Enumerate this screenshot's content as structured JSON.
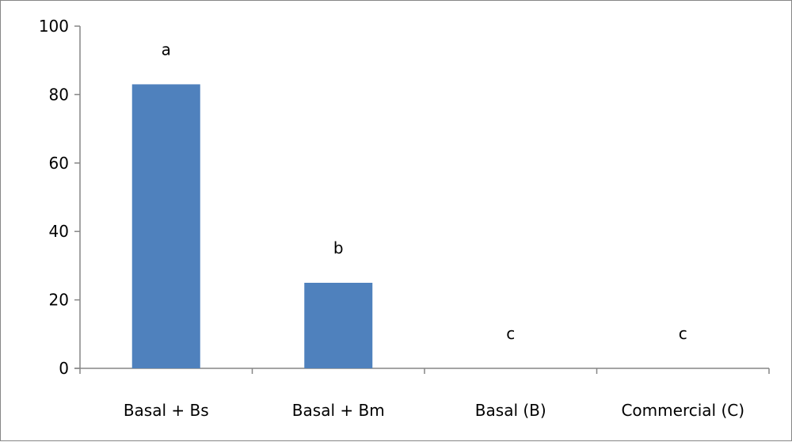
{
  "chart_data": {
    "type": "bar",
    "categories": [
      "Basal + Bs",
      "Basal + Bm",
      "Basal (B)",
      "Commercial (C)"
    ],
    "values": [
      83,
      25,
      0,
      0
    ],
    "data_labels": [
      "a",
      "b",
      "c",
      "c"
    ],
    "ylim": [
      0,
      100
    ],
    "yticks": [
      0,
      20,
      40,
      60,
      80,
      100
    ],
    "grid": false,
    "legend": "none",
    "bar_color": "#4F81BD",
    "axis_color": "#868686"
  }
}
